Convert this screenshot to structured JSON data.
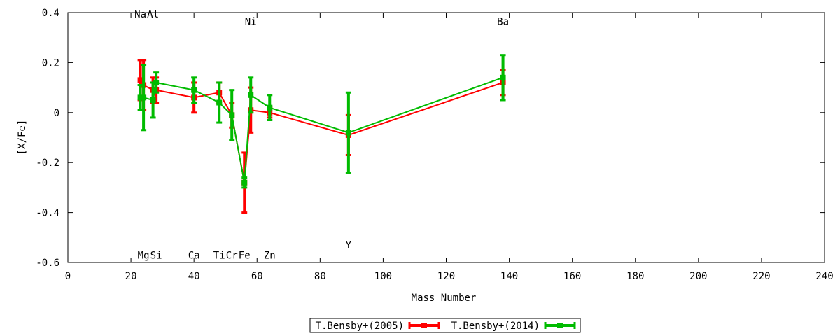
{
  "chart_data": {
    "type": "scatter",
    "xlabel": "Mass Number",
    "ylabel": "[X/Fe]",
    "xlim": [
      0,
      240
    ],
    "ylim": [
      -0.6,
      0.4
    ],
    "x_ticks": [
      0,
      20,
      40,
      60,
      80,
      100,
      120,
      140,
      160,
      180,
      200,
      220,
      240
    ],
    "y_ticks": [
      0.4,
      0.2,
      0,
      -0.2,
      -0.4,
      -0.6
    ],
    "grid": false,
    "legend_position": "bottom-center",
    "element_labels": [
      {
        "label": "Na",
        "x": 23,
        "y": 0.395
      },
      {
        "label": "Al",
        "x": 27,
        "y": 0.395
      },
      {
        "label": "Ni",
        "x": 58,
        "y": 0.365
      },
      {
        "label": "Ba",
        "x": 138,
        "y": 0.365
      },
      {
        "label": "Mg",
        "x": 24,
        "y": -0.57
      },
      {
        "label": "Si",
        "x": 28,
        "y": -0.57
      },
      {
        "label": "Ca",
        "x": 40,
        "y": -0.57
      },
      {
        "label": "Ti",
        "x": 48,
        "y": -0.57
      },
      {
        "label": "Cr",
        "x": 52,
        "y": -0.57
      },
      {
        "label": "Fe",
        "x": 56,
        "y": -0.57
      },
      {
        "label": "Zn",
        "x": 64,
        "y": -0.57
      },
      {
        "label": "Y",
        "x": 89,
        "y": -0.53
      }
    ],
    "series": [
      {
        "name": "T.Bensby+(2005)",
        "color": "#ff0000",
        "points": [
          {
            "x": 23,
            "y": 0.13,
            "yerr": 0.08
          },
          {
            "x": 24,
            "y": 0.11,
            "yerr": 0.1
          },
          {
            "x": 27,
            "y": 0.09,
            "yerr": 0.05
          },
          {
            "x": 28,
            "y": 0.09,
            "yerr": 0.05
          },
          {
            "x": 40,
            "y": 0.06,
            "yerr": 0.06
          },
          {
            "x": 48,
            "y": 0.08,
            "yerr": 0.04
          },
          {
            "x": 52,
            "y": -0.01,
            "yerr": 0.05
          },
          {
            "x": 56,
            "y": -0.28,
            "yerr": 0.12
          },
          {
            "x": 58,
            "y": 0.01,
            "yerr": 0.09
          },
          {
            "x": 64,
            "y": 0.0,
            "yerr": 0.02
          },
          {
            "x": 89,
            "y": -0.09,
            "yerr": 0.08
          },
          {
            "x": 138,
            "y": 0.12,
            "yerr": 0.05
          }
        ]
      },
      {
        "name": "T.Bensby+(2014)",
        "color": "#00bb00",
        "points": [
          {
            "x": 23,
            "y": 0.06,
            "yerr": 0.05
          },
          {
            "x": 24,
            "y": 0.06,
            "yerr": 0.13
          },
          {
            "x": 27,
            "y": 0.05,
            "yerr": 0.07
          },
          {
            "x": 28,
            "y": 0.12,
            "yerr": 0.04
          },
          {
            "x": 40,
            "y": 0.09,
            "yerr": 0.05
          },
          {
            "x": 48,
            "y": 0.04,
            "yerr": 0.08
          },
          {
            "x": 52,
            "y": -0.01,
            "yerr": 0.1
          },
          {
            "x": 56,
            "y": -0.28,
            "yerr": 0.02
          },
          {
            "x": 58,
            "y": 0.07,
            "yerr": 0.07
          },
          {
            "x": 64,
            "y": 0.02,
            "yerr": 0.05
          },
          {
            "x": 89,
            "y": -0.08,
            "yerr": 0.16
          },
          {
            "x": 138,
            "y": 0.14,
            "yerr": 0.09
          }
        ]
      }
    ]
  }
}
